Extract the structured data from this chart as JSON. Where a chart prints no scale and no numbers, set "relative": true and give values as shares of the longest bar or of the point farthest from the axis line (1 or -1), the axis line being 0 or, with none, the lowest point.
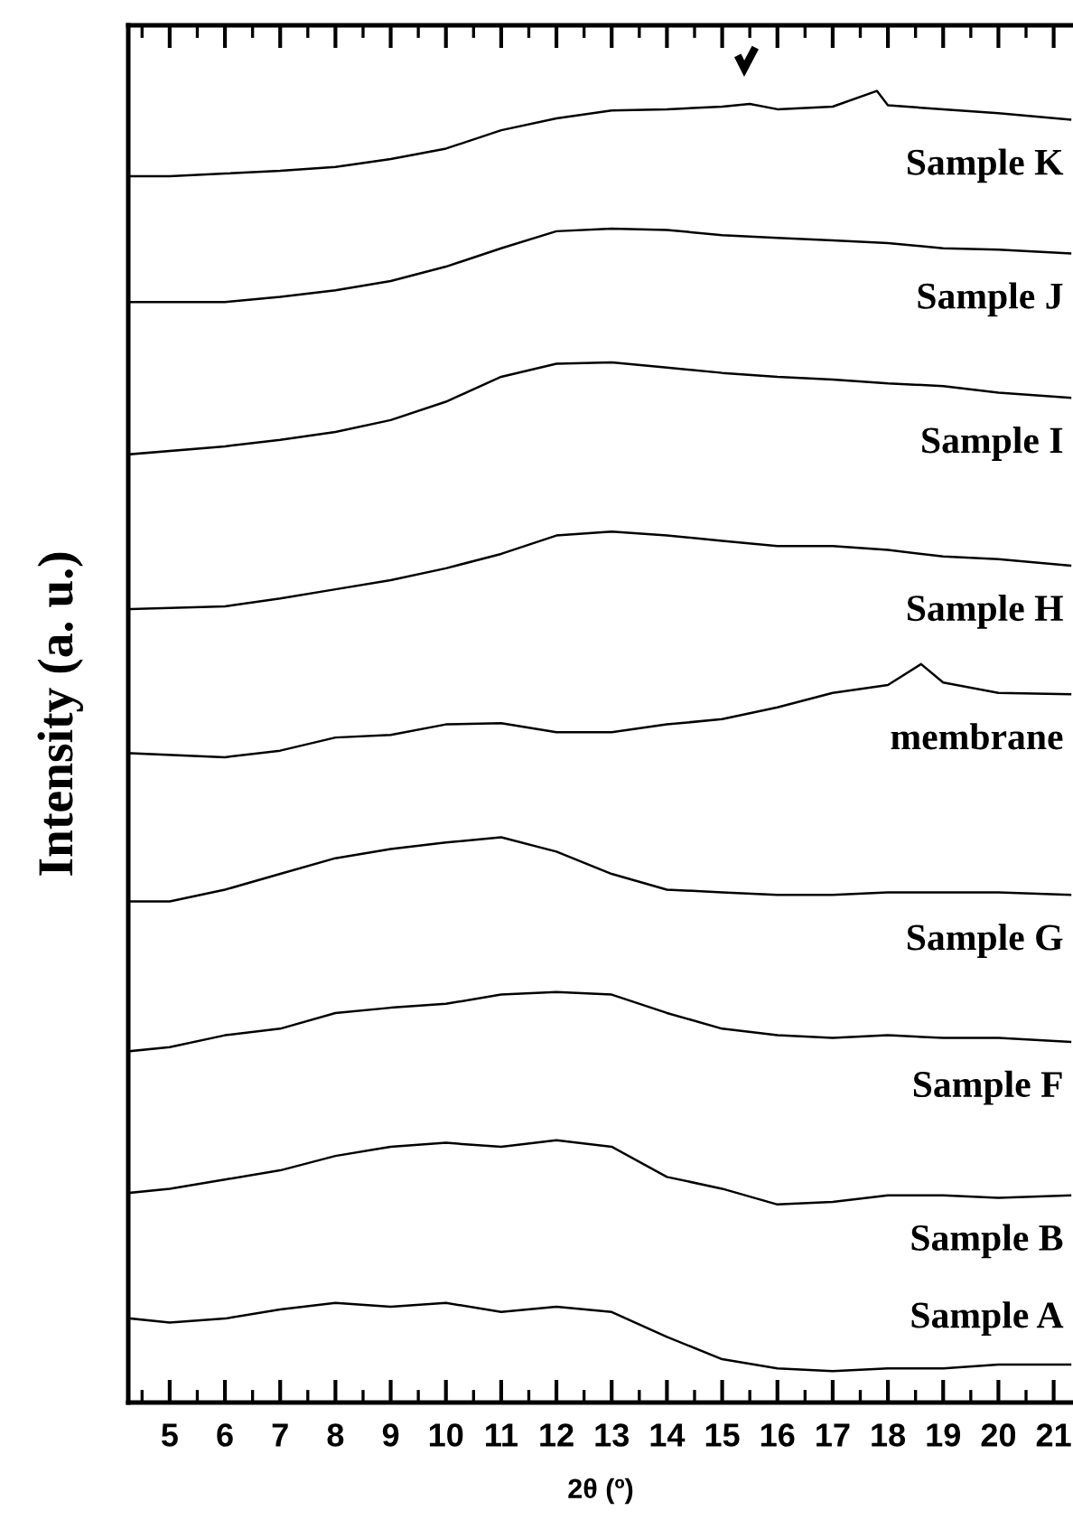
{
  "chart_data": {
    "type": "line",
    "relative": true,
    "xlabel": "2θ (º)",
    "ylabel": "Intensity (a. u.)",
    "xlim": [
      4.25,
      21.35
    ],
    "xticks": [
      {
        "value": 4.5,
        "label": null
      },
      5,
      {
        "value": 5.5,
        "label": null
      },
      6,
      {
        "value": 6.5,
        "label": null
      },
      7,
      {
        "value": 7.5,
        "label": null
      },
      8,
      {
        "value": 8.5,
        "label": null
      },
      9,
      {
        "value": 9.5,
        "label": null
      },
      10,
      {
        "value": 10.5,
        "label": null
      },
      11,
      {
        "value": 11.5,
        "label": null
      },
      12,
      {
        "value": 12.5,
        "label": null
      },
      13,
      {
        "value": 13.5,
        "label": null
      },
      14,
      {
        "value": 14.5,
        "label": null
      },
      15,
      {
        "value": 15.5,
        "label": null
      },
      16,
      {
        "value": 16.5,
        "label": null
      },
      17,
      {
        "value": 17.5,
        "label": null
      },
      18,
      {
        "value": 18.5,
        "label": null
      },
      19,
      {
        "value": 19.5,
        "label": null
      },
      20,
      {
        "value": 20.5,
        "label": null
      },
      21
    ],
    "grid": false,
    "legend": false,
    "marker": "none",
    "line_style": "solid",
    "series": [
      {
        "name": "Sample K",
        "color": "#000000",
        "x": [
          4.3,
          5,
          6,
          7,
          8,
          9,
          10,
          11,
          12,
          13,
          14,
          15,
          15.5,
          16,
          17,
          17.8,
          18,
          19,
          20,
          21.3
        ],
        "values": [
          0.935,
          0.935,
          0.937,
          0.939,
          0.942,
          0.948,
          0.956,
          0.97,
          0.979,
          0.985,
          0.986,
          0.988,
          0.99,
          0.986,
          0.988,
          1.0,
          0.989,
          0.986,
          0.983,
          0.978
        ]
      },
      {
        "name": "Sample J",
        "color": "#000000",
        "x": [
          4.3,
          6,
          7,
          8,
          9,
          10,
          11,
          12,
          13,
          14,
          15,
          16,
          17,
          18,
          19,
          20,
          21.3
        ],
        "values": [
          0.839,
          0.839,
          0.843,
          0.848,
          0.855,
          0.866,
          0.88,
          0.893,
          0.895,
          0.894,
          0.89,
          0.888,
          0.886,
          0.884,
          0.88,
          0.879,
          0.876
        ]
      },
      {
        "name": "Sample I",
        "color": "#000000",
        "x": [
          4.3,
          6,
          7,
          8,
          9,
          10,
          11,
          12,
          13,
          14,
          15,
          16,
          17,
          18,
          19,
          20,
          21.3
        ],
        "values": [
          0.723,
          0.729,
          0.734,
          0.74,
          0.749,
          0.763,
          0.782,
          0.792,
          0.793,
          0.789,
          0.785,
          0.782,
          0.78,
          0.777,
          0.775,
          0.77,
          0.766
        ]
      },
      {
        "name": "Sample H",
        "color": "#000000",
        "x": [
          4.3,
          6,
          7,
          8,
          9,
          10,
          11,
          12,
          13,
          14,
          15,
          16,
          17,
          18,
          19,
          20,
          21.3
        ],
        "values": [
          0.605,
          0.607,
          0.613,
          0.62,
          0.627,
          0.636,
          0.647,
          0.661,
          0.664,
          0.661,
          0.657,
          0.653,
          0.653,
          0.65,
          0.645,
          0.643,
          0.638
        ]
      },
      {
        "name": "membrane",
        "color": "#000000",
        "x": [
          4.3,
          6,
          7,
          8,
          9,
          10,
          11,
          12,
          13,
          14,
          15,
          16,
          17,
          18,
          18.6,
          19,
          20,
          21.3
        ],
        "values": [
          0.495,
          0.492,
          0.497,
          0.507,
          0.509,
          0.517,
          0.518,
          0.511,
          0.511,
          0.517,
          0.521,
          0.53,
          0.541,
          0.547,
          0.563,
          0.549,
          0.541,
          0.54
        ]
      },
      {
        "name": "Sample G",
        "color": "#000000",
        "x": [
          4.3,
          5,
          6,
          7,
          8,
          9,
          10,
          11,
          12,
          13,
          14,
          15,
          16,
          17,
          18,
          19,
          20,
          21.3
        ],
        "values": [
          0.382,
          0.382,
          0.391,
          0.403,
          0.415,
          0.422,
          0.427,
          0.431,
          0.42,
          0.403,
          0.391,
          0.389,
          0.387,
          0.387,
          0.389,
          0.389,
          0.389,
          0.387
        ]
      },
      {
        "name": "Sample F",
        "color": "#000000",
        "x": [
          4.3,
          5,
          6,
          7,
          8,
          9,
          10,
          11,
          12,
          13,
          14,
          15,
          16,
          17,
          18,
          19,
          20,
          21.3
        ],
        "values": [
          0.268,
          0.271,
          0.28,
          0.285,
          0.297,
          0.301,
          0.304,
          0.311,
          0.313,
          0.311,
          0.297,
          0.285,
          0.28,
          0.278,
          0.28,
          0.278,
          0.278,
          0.275
        ]
      },
      {
        "name": "Sample B",
        "color": "#000000",
        "x": [
          4.3,
          5,
          6,
          7,
          8,
          9,
          10,
          11,
          12,
          13,
          14,
          15,
          16,
          17,
          18,
          19,
          20,
          21.3
        ],
        "values": [
          0.16,
          0.163,
          0.17,
          0.177,
          0.188,
          0.195,
          0.198,
          0.195,
          0.2,
          0.195,
          0.172,
          0.163,
          0.151,
          0.153,
          0.158,
          0.158,
          0.156,
          0.158
        ]
      },
      {
        "name": "Sample A",
        "color": "#000000",
        "x": [
          4.3,
          5,
          6,
          7,
          8,
          9,
          10,
          11,
          12,
          13,
          14,
          15,
          16,
          17,
          18,
          19,
          20,
          21.3
        ],
        "values": [
          0.064,
          0.061,
          0.064,
          0.071,
          0.076,
          0.073,
          0.076,
          0.069,
          0.073,
          0.069,
          0.05,
          0.033,
          0.026,
          0.024,
          0.026,
          0.026,
          0.029,
          0.029
        ]
      }
    ]
  }
}
